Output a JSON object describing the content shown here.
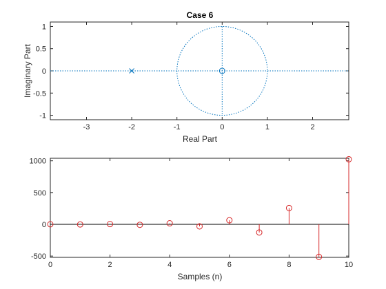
{
  "chart_data": [
    {
      "type": "scatter",
      "subtype": "pole-zero",
      "title": "Case 6",
      "xlabel": "Real Part",
      "ylabel": "Imaginary Part",
      "xlim": [
        -3.8,
        2.8
      ],
      "ylim": [
        -1.1,
        1.1
      ],
      "xticks": [
        "-3",
        "-2",
        "-1",
        "0",
        "1",
        "2"
      ],
      "xtick_values": [
        -3,
        -2,
        -1,
        0,
        1,
        2
      ],
      "yticks": [
        "-1",
        "-0.5",
        "0",
        "0.5",
        "1"
      ],
      "ytick_values": [
        -1,
        -0.5,
        0,
        0.5,
        1
      ],
      "zeros": [
        {
          "re": 0,
          "im": 0
        }
      ],
      "poles": [
        {
          "re": -2,
          "im": 0
        }
      ],
      "unit_circle": true,
      "grid": false,
      "color": "#0072bd"
    },
    {
      "type": "stem",
      "title": "",
      "xlabel": "Samples (n)",
      "ylabel": "",
      "xlim": [
        0,
        10
      ],
      "ylim": [
        -520,
        1040
      ],
      "xticks": [
        "0",
        "2",
        "4",
        "6",
        "8",
        "10"
      ],
      "xtick_values": [
        0,
        2,
        4,
        6,
        8,
        10
      ],
      "yticks": [
        "-500",
        "0",
        "500",
        "1000"
      ],
      "ytick_values": [
        -500,
        0,
        500,
        1000
      ],
      "x": [
        0,
        1,
        2,
        3,
        4,
        5,
        6,
        7,
        8,
        9,
        10
      ],
      "values": [
        1,
        -2,
        4,
        -8,
        16,
        -32,
        64,
        -128,
        256,
        -512,
        1024
      ],
      "grid": false,
      "color": "#d62728"
    }
  ]
}
